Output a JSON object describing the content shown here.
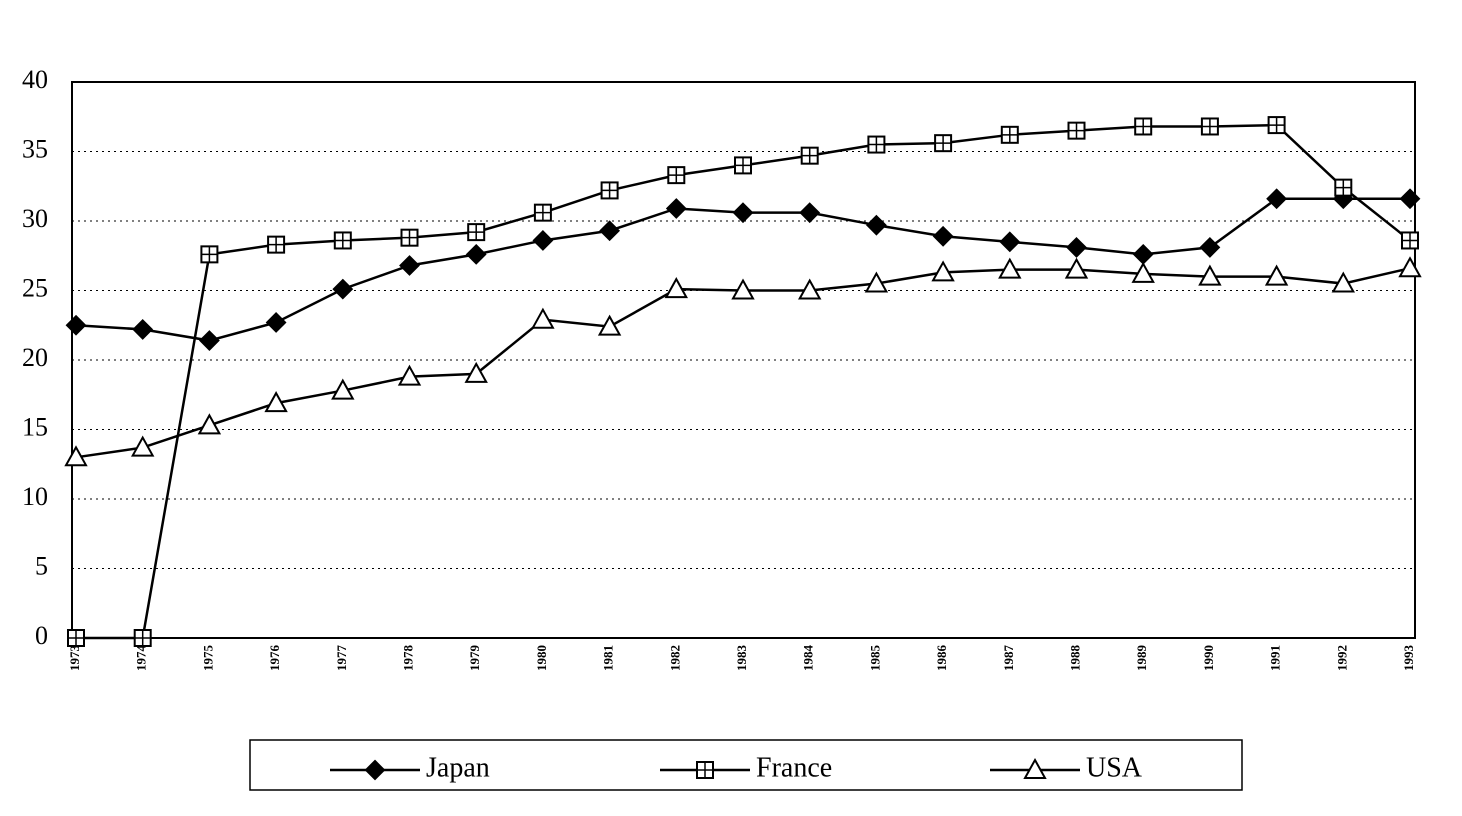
{
  "chart_data": {
    "type": "line",
    "categories": [
      "1973",
      "1974",
      "1975",
      "1976",
      "1977",
      "1978",
      "1979",
      "1980",
      "1981",
      "1982",
      "1983",
      "1984",
      "1985",
      "1986",
      "1987",
      "1988",
      "1989",
      "1990",
      "1991",
      "1992",
      "1993"
    ],
    "series": [
      {
        "name": "Japan",
        "color": "#000000",
        "marker": "diamond",
        "values": [
          22.5,
          22.2,
          21.4,
          22.7,
          25.1,
          26.8,
          27.6,
          28.6,
          29.3,
          30.9,
          30.6,
          30.6,
          29.7,
          28.9,
          28.5,
          28.1,
          27.6,
          28.1,
          31.6,
          31.6,
          31.6
        ]
      },
      {
        "name": "France",
        "color": "#000000",
        "marker": "square",
        "values": [
          0,
          0,
          27.6,
          28.3,
          28.6,
          28.8,
          29.2,
          30.6,
          32.2,
          33.3,
          34.0,
          34.7,
          35.5,
          35.6,
          36.2,
          36.5,
          36.8,
          36.8,
          36.9,
          32.4,
          28.6
        ]
      },
      {
        "name": "USA",
        "color": "#000000",
        "marker": "triangle",
        "values": [
          13.0,
          13.7,
          15.3,
          16.9,
          17.8,
          18.8,
          19.0,
          22.9,
          22.4,
          25.1,
          25.0,
          25.0,
          25.5,
          26.3,
          26.5,
          26.5,
          26.2,
          26.0,
          26.0,
          25.5,
          26.6
        ]
      }
    ],
    "ylim": [
      0,
      40
    ],
    "yticks": [
      0,
      5,
      10,
      15,
      20,
      25,
      30,
      35,
      40
    ],
    "grid": true,
    "legend": "bottom"
  }
}
